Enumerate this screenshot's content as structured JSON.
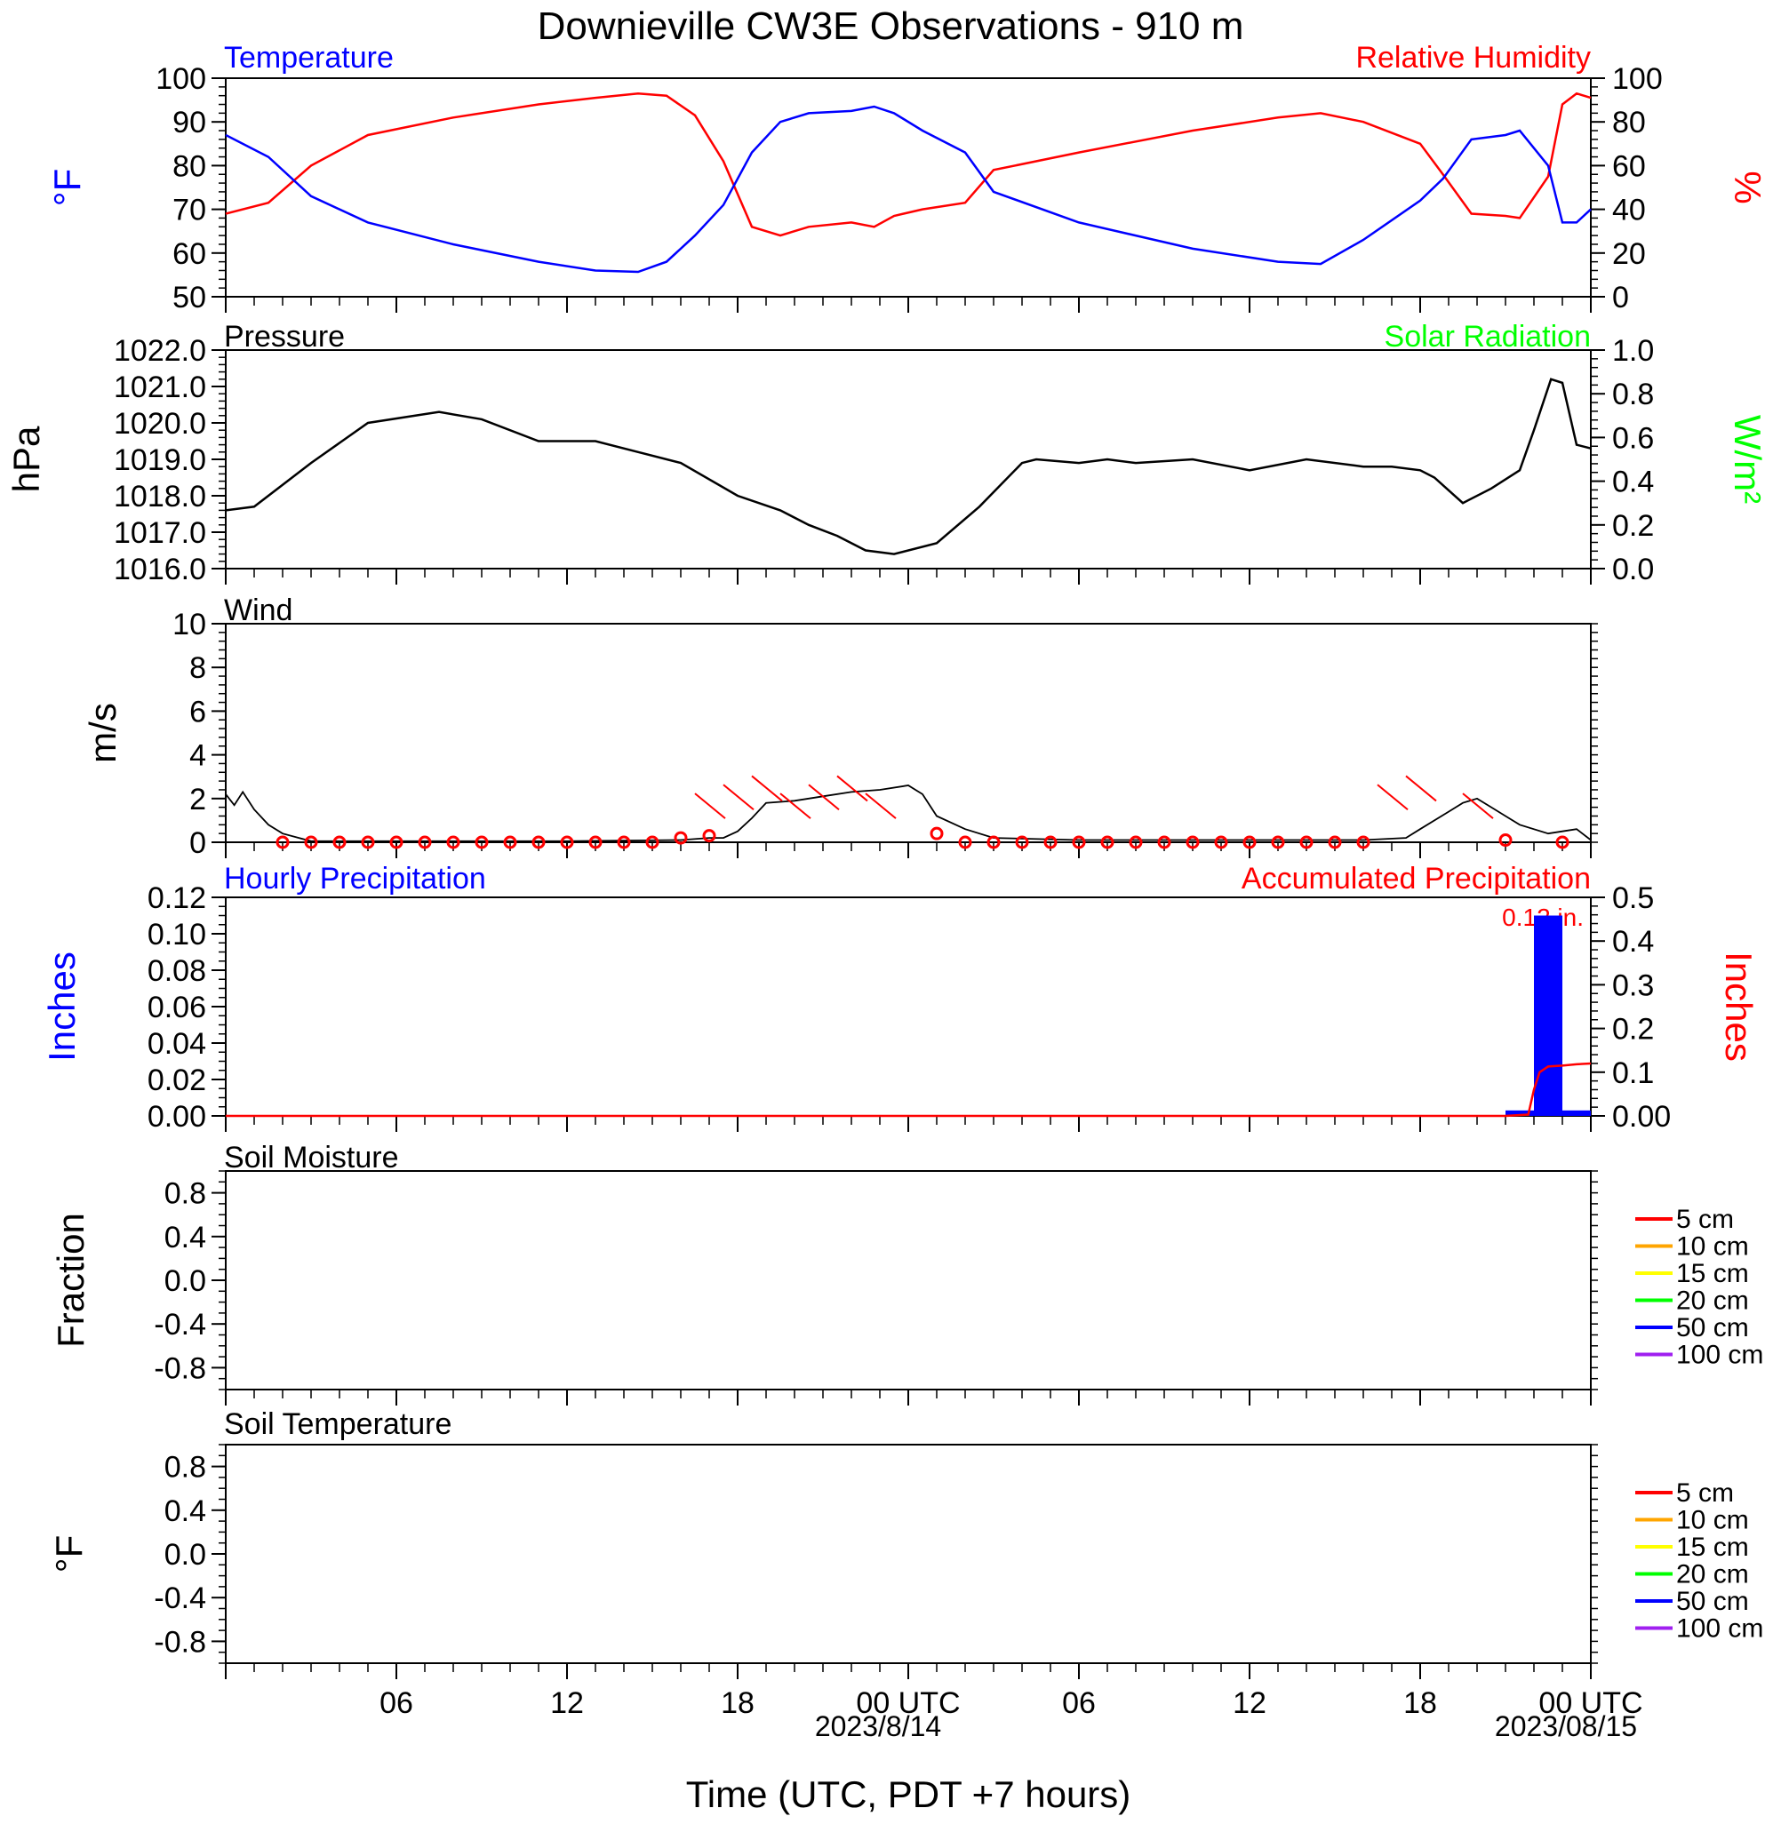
{
  "title": "Downieville CW3E Observations - 910 m",
  "x_axis": {
    "title": "Time (UTC, PDT +7 hours)",
    "tick_labels": [
      "06",
      "12",
      "18",
      "00 UTC",
      "06",
      "12",
      "18",
      "00 UTC"
    ],
    "date_labels": [
      "2023/8/14",
      "2023/08/15"
    ]
  },
  "colors": {
    "temperature": "#0000ff",
    "humidity": "#ff0000",
    "pressure": "#000000",
    "solar": "#00ff00",
    "wind": "#000000",
    "wind_marker": "#ff0000",
    "hourly_precip": "#0000ff",
    "accum_precip": "#ff0000",
    "legend": [
      "#ff0000",
      "#ffa500",
      "#ffff00",
      "#00ff00",
      "#0000ff",
      "#a020f0"
    ]
  },
  "chart_data": [
    {
      "type": "line",
      "panel": "temperature-humidity",
      "left_label": "Temperature",
      "right_label": "Relative Humidity",
      "ylabel_left": "°F",
      "ylabel_right": "%",
      "ylim_left": [
        50,
        100
      ],
      "ylim_right": [
        0,
        100
      ],
      "yticks_left": [
        "50",
        "60",
        "70",
        "80",
        "90",
        "100"
      ],
      "yticks_right": [
        "0",
        "20",
        "40",
        "60",
        "80",
        "100"
      ],
      "x_hours": [
        0,
        1.5,
        3,
        5,
        8,
        11,
        13,
        14.5,
        15.5,
        16.5,
        17.5,
        18.5,
        19.5,
        20.5,
        22,
        22.8,
        23.5,
        24.5,
        26,
        27,
        30,
        34,
        37,
        38.5,
        40,
        42,
        42.8,
        43.8,
        45,
        45.5,
        46.5,
        47,
        47.5,
        48
      ],
      "series": [
        {
          "name": "Temperature",
          "axis": "left",
          "values": [
            87,
            82,
            73,
            67,
            62,
            58,
            56,
            55.7,
            58,
            64,
            71,
            83,
            90,
            92,
            92.5,
            93.5,
            92,
            88,
            83,
            74,
            67,
            61,
            58,
            57.5,
            63,
            72,
            77,
            86,
            87,
            88,
            80,
            67,
            67,
            70
          ]
        },
        {
          "name": "Relative Humidity",
          "axis": "right",
          "values": [
            38,
            43,
            60,
            74,
            82,
            88,
            91,
            93,
            92,
            83,
            62,
            32,
            28,
            32,
            34,
            32,
            37,
            40,
            43,
            58,
            66,
            76,
            82,
            84,
            80,
            70,
            56,
            38,
            37,
            36,
            55,
            88,
            93,
            91
          ]
        }
      ]
    },
    {
      "type": "line",
      "panel": "pressure",
      "left_label": "Pressure",
      "right_label": "Solar Radiation",
      "ylabel_left": "hPa",
      "ylabel_right": "W/m²",
      "ylim_left": [
        1016.0,
        1022.0
      ],
      "ylim_right": [
        0.0,
        1.0
      ],
      "yticks_left": [
        "1016.0",
        "1017.0",
        "1018.0",
        "1019.0",
        "1020.0",
        "1021.0",
        "1022.0"
      ],
      "yticks_right": [
        "0.0",
        "0.2",
        "0.4",
        "0.6",
        "0.8",
        "1.0"
      ],
      "x_hours": [
        0,
        1,
        3,
        5,
        7.5,
        9,
        11,
        13,
        14.5,
        16,
        18,
        19.5,
        20.5,
        21.5,
        22.5,
        23.5,
        25,
        26.5,
        28,
        28.5,
        30,
        31,
        32,
        34,
        36,
        38,
        40,
        41,
        42,
        42.5,
        43.5,
        44.5,
        45.5,
        46,
        46.3,
        46.6,
        47,
        47.5,
        48
      ],
      "series": [
        {
          "name": "Pressure",
          "axis": "left",
          "values": [
            1017.6,
            1017.7,
            1018.9,
            1020.0,
            1020.3,
            1020.1,
            1019.5,
            1019.5,
            1019.2,
            1018.9,
            1018.0,
            1017.6,
            1017.2,
            1016.9,
            1016.5,
            1016.4,
            1016.7,
            1017.7,
            1018.9,
            1019.0,
            1018.9,
            1019.0,
            1018.9,
            1019.0,
            1018.7,
            1019.0,
            1018.8,
            1018.8,
            1018.7,
            1018.5,
            1017.8,
            1018.2,
            1018.7,
            1019.8,
            1020.5,
            1021.2,
            1021.1,
            1019.4,
            1019.3
          ]
        }
      ]
    },
    {
      "type": "line",
      "panel": "wind",
      "left_label": "Wind",
      "ylabel_left": "m/s",
      "ylim_left": [
        0,
        10
      ],
      "yticks_left": [
        "0",
        "2",
        "4",
        "6",
        "8",
        "10"
      ],
      "x_hours": [
        0,
        0.3,
        0.6,
        1,
        1.5,
        2,
        3,
        8,
        12,
        16,
        17,
        17.5,
        18,
        18.5,
        19,
        20,
        21,
        22,
        23,
        24,
        24.5,
        25,
        26,
        27,
        30,
        35,
        40,
        41.5,
        42,
        43,
        43.5,
        44,
        44.5,
        45,
        45.5,
        46.5,
        47,
        47.5,
        48
      ],
      "series": [
        {
          "name": "Wind",
          "axis": "left",
          "values": [
            2.2,
            1.7,
            2.3,
            1.5,
            0.8,
            0.4,
            0.05,
            0.05,
            0.05,
            0.1,
            0.2,
            0.2,
            0.5,
            1.1,
            1.8,
            1.9,
            2.1,
            2.3,
            2.4,
            2.6,
            2.2,
            1.2,
            0.6,
            0.2,
            0.1,
            0.1,
            0.1,
            0.2,
            0.6,
            1.4,
            1.8,
            2.0,
            1.6,
            1.2,
            0.8,
            0.4,
            0.5,
            0.6,
            0.1
          ]
        }
      ],
      "markers_x_hours": [
        2,
        3,
        4,
        5,
        6,
        7,
        8,
        9,
        10,
        11,
        12,
        13,
        14,
        15,
        16,
        17,
        25,
        26,
        27,
        28,
        29,
        30,
        31,
        32,
        33,
        34,
        35,
        36,
        37,
        38,
        39,
        40,
        45,
        47
      ],
      "markers_values": [
        0,
        0,
        0,
        0,
        0,
        0,
        0,
        0,
        0,
        0,
        0,
        0,
        0,
        0,
        0.2,
        0.3,
        0.4,
        0,
        0,
        0,
        0,
        0,
        0,
        0,
        0,
        0,
        0,
        0,
        0,
        0,
        0,
        0,
        0.1,
        0
      ],
      "wind_barbs_x_hours": [
        17,
        18,
        19,
        20,
        21,
        22,
        23,
        41,
        42,
        44
      ]
    },
    {
      "type": "bar",
      "panel": "precipitation",
      "left_label": "Hourly Precipitation",
      "right_label": "Accumulated Precipitation",
      "ylabel_left": "Inches",
      "ylabel_right": "Inches",
      "ylim_left": [
        0,
        0.12
      ],
      "ylim_right": [
        0,
        0.5
      ],
      "yticks_left": [
        "0.00",
        "0.02",
        "0.04",
        "0.06",
        "0.08",
        "0.10",
        "0.12"
      ],
      "yticks_right": [
        "0.00",
        "0.1",
        "0.2",
        "0.3",
        "0.4",
        "0.5"
      ],
      "annotation": "0.12 in.",
      "hourly_bars": [
        {
          "start_hour": 45,
          "end_hour": 46,
          "value": 0.003
        },
        {
          "start_hour": 46,
          "end_hour": 47,
          "value": 0.11
        },
        {
          "start_hour": 47,
          "end_hour": 48,
          "value": 0.003
        }
      ],
      "accum_x_hours": [
        0,
        45,
        45.8,
        46,
        46.2,
        46.5,
        47,
        47.5,
        48
      ],
      "accum_values": [
        0,
        0,
        0.003,
        0.06,
        0.1,
        0.113,
        0.115,
        0.118,
        0.12
      ]
    },
    {
      "type": "line",
      "panel": "soil-moisture",
      "left_label": "Soil Moisture",
      "ylabel_left": "Fraction",
      "ylim_left": [
        -1,
        1
      ],
      "yticks_left": [
        "-0.8",
        "-0.4",
        "0.0",
        "0.4",
        "0.8"
      ],
      "legend": [
        "5 cm",
        "10 cm",
        "15 cm",
        "20 cm",
        "50 cm",
        "100 cm"
      ]
    },
    {
      "type": "line",
      "panel": "soil-temperature",
      "left_label": "Soil Temperature",
      "ylabel_left": "°F",
      "ylim_left": [
        -1,
        1
      ],
      "yticks_left": [
        "-0.8",
        "-0.4",
        "0.0",
        "0.4",
        "0.8"
      ],
      "legend": [
        "5 cm",
        "10 cm",
        "15 cm",
        "20 cm",
        "50 cm",
        "100 cm"
      ]
    }
  ]
}
